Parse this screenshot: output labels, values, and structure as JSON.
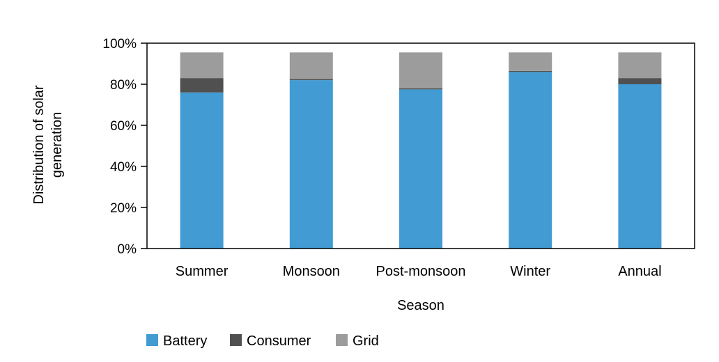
{
  "chart_data": {
    "type": "bar",
    "stacked": true,
    "categories": [
      "Summer",
      "Monsoon",
      "Post-monsoon",
      "Winter",
      "Annual"
    ],
    "series": [
      {
        "name": "Battery",
        "color": "#429bd3",
        "values": [
          0.76,
          0.82,
          0.775,
          0.86,
          0.8
        ]
      },
      {
        "name": "Consumer",
        "color": "#505050",
        "values": [
          0.07,
          0.005,
          0.005,
          0.005,
          0.03
        ]
      },
      {
        "name": "Grid",
        "color": "#9c9c9c",
        "values": [
          0.125,
          0.13,
          0.175,
          0.09,
          0.125
        ]
      }
    ],
    "ylabel_lines": [
      "Distribution of solar",
      "generation"
    ],
    "xlabel": "Season",
    "ylim": [
      0,
      1
    ],
    "yticks": [
      {
        "value": 0,
        "label": "0%"
      },
      {
        "value": 0.2,
        "label": "20%"
      },
      {
        "value": 0.4,
        "label": "40%"
      },
      {
        "value": 0.6,
        "label": "60%"
      },
      {
        "value": 0.8,
        "label": "80%"
      },
      {
        "value": 1.0,
        "label": "100%"
      }
    ],
    "grid": false,
    "legend_position": "bottom-left"
  }
}
